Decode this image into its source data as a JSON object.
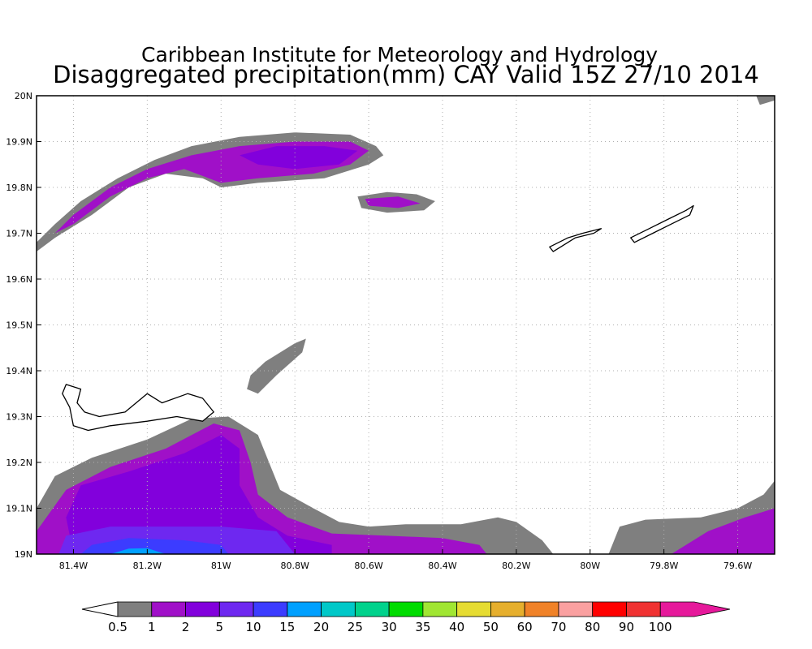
{
  "header": {
    "title": "Caribbean Institute for Meteorology and Hydrology",
    "subtitle": "Disaggregated precipitation(mm) CAY Valid 15Z 27/10 2014"
  },
  "map": {
    "lon_range": [
      -81.5,
      -79.5
    ],
    "lat_range": [
      19.0,
      20.0
    ],
    "grid": "dotted",
    "x_ticks": [
      {
        "value": -81.4,
        "label": "81.4W"
      },
      {
        "value": -81.2,
        "label": "81.2W"
      },
      {
        "value": -81.0,
        "label": "81W"
      },
      {
        "value": -80.8,
        "label": "80.8W"
      },
      {
        "value": -80.6,
        "label": "80.6W"
      },
      {
        "value": -80.4,
        "label": "80.4W"
      },
      {
        "value": -80.2,
        "label": "80.2W"
      },
      {
        "value": -80.0,
        "label": "80W"
      },
      {
        "value": -79.8,
        "label": "79.8W"
      },
      {
        "value": -79.6,
        "label": "79.6W"
      }
    ],
    "y_ticks": [
      {
        "value": 19.0,
        "label": "19N"
      },
      {
        "value": 19.1,
        "label": "19.1N"
      },
      {
        "value": 19.2,
        "label": "19.2N"
      },
      {
        "value": 19.3,
        "label": "19.3N"
      },
      {
        "value": 19.4,
        "label": "19.4N"
      },
      {
        "value": 19.5,
        "label": "19.5N"
      },
      {
        "value": 19.6,
        "label": "19.6N"
      },
      {
        "value": 19.7,
        "label": "19.7N"
      },
      {
        "value": 19.8,
        "label": "19.8N"
      },
      {
        "value": 19.9,
        "label": "19.9N"
      },
      {
        "value": 20.0,
        "label": "20N"
      }
    ],
    "islands": [
      {
        "name": "grand-cayman",
        "points": [
          [
            -81.42,
            19.37
          ],
          [
            -81.38,
            19.36
          ],
          [
            -81.39,
            19.33
          ],
          [
            -81.37,
            19.31
          ],
          [
            -81.33,
            19.3
          ],
          [
            -81.26,
            19.31
          ],
          [
            -81.2,
            19.35
          ],
          [
            -81.16,
            19.33
          ],
          [
            -81.09,
            19.35
          ],
          [
            -81.05,
            19.34
          ],
          [
            -81.02,
            19.31
          ],
          [
            -81.05,
            19.29
          ],
          [
            -81.12,
            19.3
          ],
          [
            -81.2,
            19.29
          ],
          [
            -81.3,
            19.28
          ],
          [
            -81.36,
            19.27
          ],
          [
            -81.4,
            19.28
          ],
          [
            -81.41,
            19.32
          ],
          [
            -81.43,
            19.35
          ]
        ]
      },
      {
        "name": "little-cayman",
        "points": [
          [
            -80.11,
            19.67
          ],
          [
            -80.06,
            19.69
          ],
          [
            -80.02,
            19.7
          ],
          [
            -79.97,
            19.71
          ],
          [
            -79.99,
            19.7
          ],
          [
            -80.04,
            19.69
          ],
          [
            -80.08,
            19.67
          ],
          [
            -80.1,
            19.66
          ]
        ]
      },
      {
        "name": "cayman-brac",
        "points": [
          [
            -79.89,
            19.69
          ],
          [
            -79.84,
            19.71
          ],
          [
            -79.79,
            19.73
          ],
          [
            -79.74,
            19.75
          ],
          [
            -79.72,
            19.76
          ],
          [
            -79.73,
            19.74
          ],
          [
            -79.78,
            19.72
          ],
          [
            -79.83,
            19.7
          ],
          [
            -79.88,
            19.68
          ]
        ]
      }
    ]
  },
  "chart_data": {
    "type": "heatmap",
    "title": "Caribbean Institute for Meteorology and Hydrology",
    "subtitle": "Disaggregated precipitation(mm) CAY Valid 15Z 27/10 2014",
    "x_range": [
      -81.5,
      -79.5
    ],
    "y_range": [
      19.0,
      20.0
    ],
    "levels": [
      {
        "min": 0.5,
        "max": 1,
        "color": "#7f7f7f"
      },
      {
        "min": 1,
        "max": 2,
        "color": "#a010c8"
      },
      {
        "min": 2,
        "max": 5,
        "color": "#8200dc"
      },
      {
        "min": 5,
        "max": 10,
        "color": "#6e28f0"
      },
      {
        "min": 10,
        "max": 15,
        "color": "#3c3cff"
      },
      {
        "min": 15,
        "max": 20,
        "color": "#00a0ff"
      }
    ],
    "regions": [
      {
        "level": 0,
        "points": [
          [
            -81.5,
            19.68
          ],
          [
            -81.45,
            19.72
          ],
          [
            -81.38,
            19.77
          ],
          [
            -81.28,
            19.82
          ],
          [
            -81.18,
            19.86
          ],
          [
            -81.08,
            19.89
          ],
          [
            -80.95,
            19.91
          ],
          [
            -80.8,
            19.92
          ],
          [
            -80.65,
            19.915
          ],
          [
            -80.58,
            19.89
          ],
          [
            -80.56,
            19.87
          ],
          [
            -80.6,
            19.85
          ],
          [
            -80.72,
            19.82
          ],
          [
            -80.9,
            19.81
          ],
          [
            -81.0,
            19.8
          ],
          [
            -81.05,
            19.82
          ],
          [
            -81.15,
            19.83
          ],
          [
            -81.25,
            19.8
          ],
          [
            -81.35,
            19.74
          ],
          [
            -81.45,
            19.69
          ],
          [
            -81.5,
            19.66
          ]
        ]
      },
      {
        "level": 1,
        "points": [
          [
            -81.45,
            19.7
          ],
          [
            -81.4,
            19.74
          ],
          [
            -81.3,
            19.8
          ],
          [
            -81.2,
            19.84
          ],
          [
            -81.08,
            19.87
          ],
          [
            -80.95,
            19.89
          ],
          [
            -80.8,
            19.9
          ],
          [
            -80.65,
            19.9
          ],
          [
            -80.6,
            19.88
          ],
          [
            -80.65,
            19.85
          ],
          [
            -80.75,
            19.83
          ],
          [
            -80.9,
            19.82
          ],
          [
            -81.0,
            19.81
          ],
          [
            -81.1,
            19.84
          ],
          [
            -81.2,
            19.82
          ],
          [
            -81.3,
            19.78
          ],
          [
            -81.4,
            19.72
          ]
        ]
      },
      {
        "level": 2,
        "points": [
          [
            -80.95,
            19.87
          ],
          [
            -80.85,
            19.89
          ],
          [
            -80.72,
            19.89
          ],
          [
            -80.63,
            19.88
          ],
          [
            -80.68,
            19.85
          ],
          [
            -80.8,
            19.84
          ],
          [
            -80.9,
            19.85
          ]
        ]
      },
      {
        "level": 0,
        "points": [
          [
            -80.63,
            19.78
          ],
          [
            -80.55,
            19.79
          ],
          [
            -80.47,
            19.785
          ],
          [
            -80.42,
            19.77
          ],
          [
            -80.45,
            19.75
          ],
          [
            -80.55,
            19.745
          ],
          [
            -80.62,
            19.755
          ]
        ]
      },
      {
        "level": 1,
        "points": [
          [
            -80.61,
            19.775
          ],
          [
            -80.52,
            19.78
          ],
          [
            -80.46,
            19.765
          ],
          [
            -80.52,
            19.755
          ],
          [
            -80.6,
            19.76
          ]
        ]
      },
      {
        "level": 0,
        "points": [
          [
            -80.92,
            19.39
          ],
          [
            -80.88,
            19.42
          ],
          [
            -80.8,
            19.46
          ],
          [
            -80.77,
            19.47
          ],
          [
            -80.78,
            19.44
          ],
          [
            -80.85,
            19.39
          ],
          [
            -80.9,
            19.35
          ],
          [
            -80.93,
            19.36
          ]
        ]
      },
      {
        "level": 0,
        "points": [
          [
            -81.5,
            19.1
          ],
          [
            -81.45,
            19.17
          ],
          [
            -81.35,
            19.21
          ],
          [
            -81.2,
            19.25
          ],
          [
            -81.08,
            19.295
          ],
          [
            -80.98,
            19.3
          ],
          [
            -80.9,
            19.26
          ],
          [
            -80.87,
            19.2
          ],
          [
            -80.84,
            19.14
          ],
          [
            -80.75,
            19.1
          ],
          [
            -80.68,
            19.07
          ],
          [
            -80.6,
            19.06
          ],
          [
            -80.5,
            19.065
          ],
          [
            -80.35,
            19.065
          ],
          [
            -80.25,
            19.08
          ],
          [
            -80.2,
            19.07
          ],
          [
            -80.13,
            19.03
          ],
          [
            -80.1,
            19.0
          ],
          [
            -81.5,
            19.0
          ]
        ]
      },
      {
        "level": 1,
        "points": [
          [
            -81.5,
            19.05
          ],
          [
            -81.42,
            19.14
          ],
          [
            -81.3,
            19.19
          ],
          [
            -81.15,
            19.23
          ],
          [
            -81.02,
            19.285
          ],
          [
            -80.95,
            19.27
          ],
          [
            -80.92,
            19.2
          ],
          [
            -80.9,
            19.13
          ],
          [
            -80.82,
            19.08
          ],
          [
            -80.7,
            19.045
          ],
          [
            -80.55,
            19.04
          ],
          [
            -80.4,
            19.035
          ],
          [
            -80.3,
            19.02
          ],
          [
            -80.28,
            19.0
          ],
          [
            -81.5,
            19.0
          ]
        ]
      },
      {
        "level": 2,
        "points": [
          [
            -81.38,
            19.15
          ],
          [
            -81.25,
            19.18
          ],
          [
            -81.1,
            19.22
          ],
          [
            -81.0,
            19.26
          ],
          [
            -80.95,
            19.23
          ],
          [
            -80.95,
            19.15
          ],
          [
            -80.9,
            19.08
          ],
          [
            -80.82,
            19.04
          ],
          [
            -80.7,
            19.02
          ],
          [
            -80.7,
            19.0
          ],
          [
            -81.4,
            19.0
          ],
          [
            -81.42,
            19.08
          ]
        ]
      },
      {
        "level": 3,
        "points": [
          [
            -81.42,
            19.04
          ],
          [
            -81.3,
            19.06
          ],
          [
            -81.15,
            19.06
          ],
          [
            -81.0,
            19.06
          ],
          [
            -80.85,
            19.05
          ],
          [
            -80.82,
            19.02
          ],
          [
            -80.8,
            19.0
          ],
          [
            -81.44,
            19.0
          ]
        ]
      },
      {
        "level": 4,
        "points": [
          [
            -81.35,
            19.02
          ],
          [
            -81.25,
            19.035
          ],
          [
            -81.1,
            19.03
          ],
          [
            -81.0,
            19.02
          ],
          [
            -80.98,
            19.0
          ],
          [
            -81.38,
            19.0
          ]
        ]
      },
      {
        "level": 5,
        "points": [
          [
            -81.3,
            19.0
          ],
          [
            -81.25,
            19.012
          ],
          [
            -81.2,
            19.013
          ],
          [
            -81.15,
            19.0
          ]
        ]
      },
      {
        "level": 0,
        "points": [
          [
            -79.95,
            19.0
          ],
          [
            -79.92,
            19.06
          ],
          [
            -79.85,
            19.075
          ],
          [
            -79.7,
            19.08
          ],
          [
            -79.6,
            19.1
          ],
          [
            -79.53,
            19.13
          ],
          [
            -79.5,
            19.16
          ],
          [
            -79.5,
            19.0
          ]
        ]
      },
      {
        "level": 1,
        "points": [
          [
            -79.78,
            19.0
          ],
          [
            -79.68,
            19.05
          ],
          [
            -79.58,
            19.08
          ],
          [
            -79.5,
            19.1
          ],
          [
            -79.5,
            19.0
          ]
        ]
      },
      {
        "level": 0,
        "points": [
          [
            -79.55,
            20.0
          ],
          [
            -79.54,
            19.98
          ],
          [
            -79.5,
            19.99
          ],
          [
            -79.5,
            20.0
          ]
        ]
      }
    ],
    "colorbar": {
      "labels": [
        "0.5",
        "1",
        "2",
        "5",
        "10",
        "15",
        "20",
        "25",
        "30",
        "35",
        "40",
        "50",
        "60",
        "70",
        "80",
        "90",
        "100"
      ],
      "colors": [
        "#7f7f7f",
        "#a010c8",
        "#8200dc",
        "#6e28f0",
        "#3c3cff",
        "#00a0ff",
        "#00c8c8",
        "#00d28c",
        "#00dc00",
        "#a0e632",
        "#e6dc32",
        "#e6af2d",
        "#f08228",
        "#faa0a0",
        "#ff0000",
        "#f03232",
        "#e6199b"
      ]
    }
  }
}
